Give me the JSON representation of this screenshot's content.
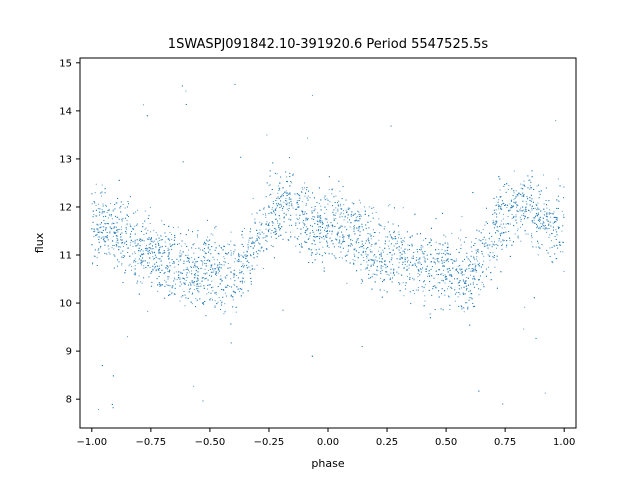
{
  "chart_data": {
    "type": "scatter",
    "title": "1SWASPJ091842.10-391920.6 Period 5547525.5s",
    "xlabel": "phase",
    "ylabel": "flux",
    "xlim": [
      -1.05,
      1.05
    ],
    "ylim": [
      7.4,
      15.1
    ],
    "xticks": [
      -1.0,
      -0.75,
      -0.5,
      -0.25,
      0.0,
      0.25,
      0.5,
      0.75,
      1.0
    ],
    "xtick_labels": [
      "−1.00",
      "−0.75",
      "−0.50",
      "−0.25",
      "0.00",
      "0.25",
      "0.50",
      "0.75",
      "1.00"
    ],
    "yticks": [
      8,
      9,
      10,
      11,
      12,
      13,
      14,
      15
    ],
    "ytick_labels": [
      "8",
      "9",
      "10",
      "11",
      "12",
      "13",
      "14",
      "15"
    ],
    "grid": false,
    "point_color": "#1f77b4",
    "series": [
      {
        "x_range": [
          -1.0,
          1.0
        ],
        "mirrored_at_phase": 1.0,
        "trend": {
          "x": [
            0.0,
            0.05,
            0.1,
            0.15,
            0.2,
            0.25,
            0.3,
            0.35,
            0.4,
            0.45,
            0.5,
            0.55,
            0.6,
            0.65,
            0.7,
            0.75,
            0.8,
            0.85,
            0.9,
            0.95,
            1.0
          ],
          "y": [
            11.6,
            11.6,
            11.5,
            11.3,
            11.1,
            11.0,
            10.9,
            10.8,
            10.7,
            10.7,
            10.7,
            10.6,
            10.5,
            10.9,
            11.4,
            11.8,
            12.0,
            12.0,
            11.8,
            11.5,
            11.6
          ]
        },
        "spread": 0.55,
        "outlier_range": [
          7.7,
          14.6
        ]
      }
    ]
  }
}
